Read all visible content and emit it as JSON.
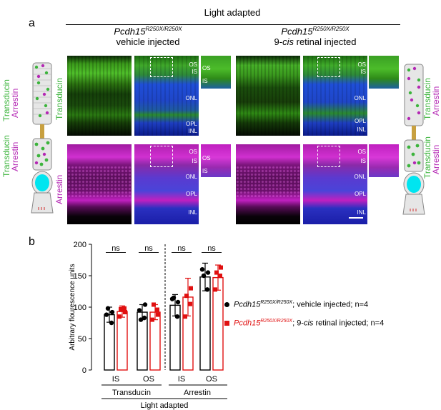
{
  "panel_a": {
    "letter": "a",
    "header": "Light adapted",
    "conditions": [
      {
        "genotype": "Pcdh15",
        "sup": "R250X/R250X",
        "treatment": "vehicle injected",
        "treatment_prefix": "",
        "treatment_italic": "",
        "treatment_suffix": ""
      },
      {
        "genotype": "Pcdh15",
        "sup": "R250X/R250X",
        "treatment": "",
        "treatment_prefix": "9-",
        "treatment_italic": "cis",
        "treatment_suffix": " retinal injected"
      }
    ],
    "row_labels": {
      "top": "Transducin",
      "bottom": "Arrestin"
    },
    "layer_labels": {
      "os": "OS",
      "is": "IS",
      "onl": "ONL",
      "opl": "OPL",
      "inl": "INL"
    },
    "cell_diagram_labels": {
      "transducin": "Transducin",
      "arrestin": "Arrestin"
    },
    "colors": {
      "transducin": "#3cb43c",
      "arrestin": "#b428b4",
      "dapi": "#2a46d8",
      "nucleus": "#00e5f0"
    }
  },
  "panel_b": {
    "letter": "b",
    "legend": [
      {
        "genotype": "Pcdh15",
        "sup": "R250X/R250X",
        "text": "; vehicle injected; n=4",
        "prefix": "",
        "italic": "",
        "color": "#000000",
        "marker": "circle"
      },
      {
        "genotype": "Pcdh15",
        "sup": "R250X/R250X",
        "text": "; 9-",
        "prefix": "",
        "italic": "cis",
        "suffix": " retinal injected; n=4",
        "color": "#e01010",
        "marker": "square"
      }
    ],
    "group_labels": [
      "Transducin",
      "Arrestin"
    ],
    "footer": "Light adapted"
  },
  "chart_data": {
    "type": "bar",
    "ylabel": "Arbitrary flourescence units",
    "ylim": [
      0,
      200
    ],
    "yticks": [
      0,
      50,
      100,
      150,
      200
    ],
    "categories": [
      "IS",
      "OS",
      "IS",
      "OS"
    ],
    "groups": [
      "Transducin",
      "Transducin",
      "Arrestin",
      "Arrestin"
    ],
    "significance": [
      "ns",
      "ns",
      "ns",
      "ns"
    ],
    "series": [
      {
        "name": "Pcdh15 R250X/R250X; vehicle injected; n=4",
        "color": "#000000",
        "values": [
          88,
          92,
          103,
          148
        ],
        "errors": [
          12,
          12,
          17,
          22
        ],
        "points": [
          [
            88,
            75,
            98,
            92
          ],
          [
            95,
            83,
            80,
            104
          ],
          [
            113,
            85,
            115,
            108
          ],
          [
            160,
            128,
            150,
            155
          ]
        ]
      },
      {
        "name": "Pcdh15 R250X/R250X; 9-cis retinal injected; n=4",
        "color": "#e01010",
        "values": [
          93,
          92,
          116,
          147
        ],
        "errors": [
          9,
          12,
          30,
          20
        ],
        "points": [
          [
            85,
            98,
            97,
            92
          ],
          [
            80,
            96,
            104,
            88
          ],
          [
            85,
            105,
            118,
            130
          ],
          [
            128,
            150,
            155,
            163
          ]
        ]
      }
    ],
    "legend": "right",
    "grid": false
  }
}
